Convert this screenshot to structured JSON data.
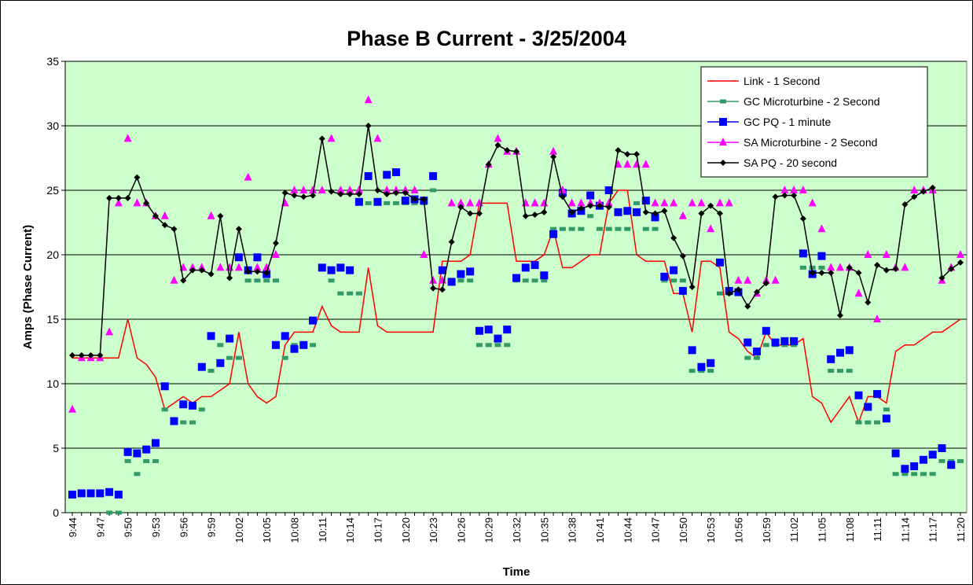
{
  "chart_data": {
    "type": "line",
    "title": "Phase B Current - 3/25/2004",
    "x_label": "Time",
    "y_label": "Amps (Phase Current)",
    "categories": [
      "9:44",
      null,
      null,
      "9:47",
      null,
      null,
      "9:50",
      null,
      null,
      "9:53",
      null,
      null,
      "9:56",
      null,
      null,
      "9:59",
      null,
      null,
      "10:02",
      null,
      null,
      "10:05",
      null,
      null,
      "10:08",
      null,
      null,
      "10:11",
      null,
      null,
      "10:14",
      null,
      null,
      "10:17",
      null,
      null,
      "10:20",
      null,
      null,
      "10:23",
      null,
      null,
      "10:26",
      null,
      null,
      "10:29",
      null,
      null,
      "10:32",
      null,
      null,
      "10:35",
      null,
      null,
      "10:38",
      null,
      null,
      "10:41",
      null,
      null,
      "10:44",
      null,
      null,
      "10:47",
      null,
      null,
      "10:50",
      null,
      null,
      "10:53",
      null,
      null,
      "10:56",
      null,
      null,
      "10:59",
      null,
      null,
      "11:02",
      null,
      null,
      "11:05",
      null,
      null,
      "11:08",
      null,
      null,
      "11:11",
      null,
      null,
      "11:14",
      null,
      null,
      "11:17",
      null,
      null,
      "11:20"
    ],
    "ylim": [
      0,
      35
    ],
    "yticks": [
      0,
      5,
      10,
      15,
      20,
      25,
      30,
      35
    ],
    "grid": true,
    "legend": "upper right",
    "series": [
      {
        "name": "Link - 1 Second",
        "color": "#ff0000",
        "line": true,
        "marker": "none",
        "values": [
          12,
          12,
          12,
          12,
          12,
          12,
          15,
          12,
          11.5,
          10.5,
          8,
          8.5,
          9,
          8.5,
          9,
          9,
          9.5,
          10,
          14,
          10,
          9,
          8.5,
          9,
          13,
          14,
          14,
          14,
          16,
          14.5,
          14,
          14,
          14,
          19,
          14.5,
          14,
          14,
          14,
          14,
          14,
          14,
          19.5,
          19.5,
          19.5,
          20,
          24,
          24,
          24,
          24,
          19.5,
          19.5,
          19.5,
          20,
          22,
          19,
          19,
          19.5,
          20,
          20,
          24,
          25,
          25,
          20,
          19.5,
          19.5,
          19.5,
          17,
          17,
          14,
          19.5,
          19.5,
          19,
          14,
          13.5,
          12.5,
          12,
          14,
          13,
          13,
          13,
          13.5,
          9,
          8.5,
          7,
          8,
          9,
          7,
          9,
          9,
          8.5,
          12.5,
          13,
          13,
          13.5,
          14,
          14,
          14.5,
          15
        ]
      },
      {
        "name": "GC Microturbine  - 2 Second",
        "color": "#339966",
        "line": false,
        "marker": "dash",
        "values": [
          null,
          null,
          null,
          null,
          0,
          0,
          4,
          3,
          4,
          4,
          8,
          7,
          7,
          7,
          8,
          11,
          13,
          12,
          12,
          18,
          18,
          18,
          18,
          12,
          13,
          13,
          13,
          19,
          18,
          17,
          17,
          17,
          24,
          24,
          24,
          24,
          24,
          24,
          24,
          25,
          18,
          18,
          18,
          18,
          13,
          13,
          13,
          13,
          18,
          18,
          18,
          18,
          22,
          22,
          22,
          22,
          23,
          22,
          22,
          22,
          22,
          24,
          22,
          22,
          18,
          18,
          18,
          11,
          11,
          11,
          17,
          17,
          17,
          12,
          12,
          13,
          13,
          13,
          13,
          19,
          19,
          19,
          11,
          11,
          11,
          7,
          7,
          7,
          8,
          3,
          3,
          3,
          3,
          3,
          4,
          4,
          4
        ]
      },
      {
        "name": "GC PQ - 1 minute",
        "color": "#0000ff",
        "line": false,
        "marker": "square",
        "values": [
          1.4,
          1.5,
          1.5,
          1.5,
          1.6,
          1.4,
          4.7,
          4.6,
          4.9,
          5.4,
          9.8,
          7.1,
          8.4,
          8.3,
          11.3,
          13.7,
          11.6,
          13.5,
          19.8,
          18.8,
          19.8,
          18.5,
          13,
          13.7,
          12.7,
          13,
          14.9,
          19,
          18.8,
          19,
          18.8,
          24.1,
          26.1,
          24.1,
          26.2,
          26.4,
          24.2,
          24.3,
          24.2,
          26.1,
          18.8,
          17.9,
          18.5,
          18.7,
          14.1,
          14.2,
          13.5,
          14.2,
          18.2,
          19,
          19.2,
          18.4,
          21.6,
          24.8,
          23.2,
          23.4,
          24.6,
          23.8,
          25,
          23.3,
          23.4,
          23.3,
          24.2,
          22.9,
          18.3,
          18.8,
          17.2,
          12.6,
          11.3,
          11.6,
          19.4,
          17.2,
          17.1,
          13.2,
          12.5,
          14.1,
          13.2,
          13.3,
          13.3,
          20.1,
          18.5,
          19.9,
          11.9,
          12.4,
          12.6,
          9.1,
          8.2,
          9.2,
          7.3,
          4.6,
          3.4,
          3.6,
          4.1,
          4.5,
          5,
          3.7,
          null
        ]
      },
      {
        "name": "SA Microturbine - 2 Second",
        "color": "#ff00ff",
        "line": false,
        "marker": "triangle",
        "values": [
          8,
          12,
          12,
          12,
          14,
          24,
          29,
          24,
          24,
          23,
          23,
          18,
          19,
          19,
          19,
          23,
          19,
          19,
          19,
          26,
          19,
          19,
          20,
          24,
          25,
          25,
          25,
          25,
          29,
          25,
          25,
          25,
          32,
          29,
          25,
          25,
          25,
          25,
          20,
          18,
          18,
          24,
          24,
          24,
          24,
          27,
          29,
          28,
          28,
          24,
          24,
          24,
          28,
          25,
          24,
          24,
          24,
          24,
          24,
          27,
          27,
          27,
          27,
          24,
          24,
          24,
          23,
          24,
          24,
          22,
          24,
          24,
          18,
          18,
          17,
          18,
          18,
          25,
          25,
          25,
          24,
          22,
          19,
          19,
          19,
          17,
          20,
          15,
          20,
          19,
          19,
          25,
          25,
          25,
          18,
          19,
          20
        ]
      },
      {
        "name": "SA PQ - 20 second",
        "color": "#000000",
        "line": true,
        "marker": "diamond",
        "values": [
          12.2,
          12.2,
          12.2,
          12.2,
          24.4,
          24.4,
          24.4,
          26,
          24,
          23,
          22.3,
          22,
          18,
          18.8,
          18.8,
          18.5,
          23,
          18.2,
          22,
          18.7,
          18.7,
          18.6,
          20.9,
          24.8,
          24.6,
          24.5,
          24.6,
          29,
          24.9,
          24.7,
          24.7,
          24.7,
          30,
          25,
          24.7,
          24.8,
          24.8,
          24.3,
          24.3,
          17.4,
          17.3,
          21,
          23.7,
          23.2,
          23.2,
          27,
          28.5,
          28.1,
          28,
          23,
          23.1,
          23.3,
          27.6,
          24.5,
          23.3,
          23.6,
          23.8,
          23.8,
          23.7,
          28.1,
          27.8,
          27.8,
          23.3,
          23.2,
          23.4,
          21.3,
          19.9,
          17.5,
          23.2,
          23.8,
          23.2,
          17,
          17.3,
          16,
          17.1,
          17.8,
          24.5,
          24.6,
          24.6,
          22.8,
          18.6,
          18.6,
          18.6,
          15.3,
          19,
          18.6,
          16.3,
          19.2,
          18.8,
          18.9,
          23.9,
          24.5,
          24.9,
          25.2,
          18.2,
          18.9,
          19.4
        ]
      }
    ]
  }
}
